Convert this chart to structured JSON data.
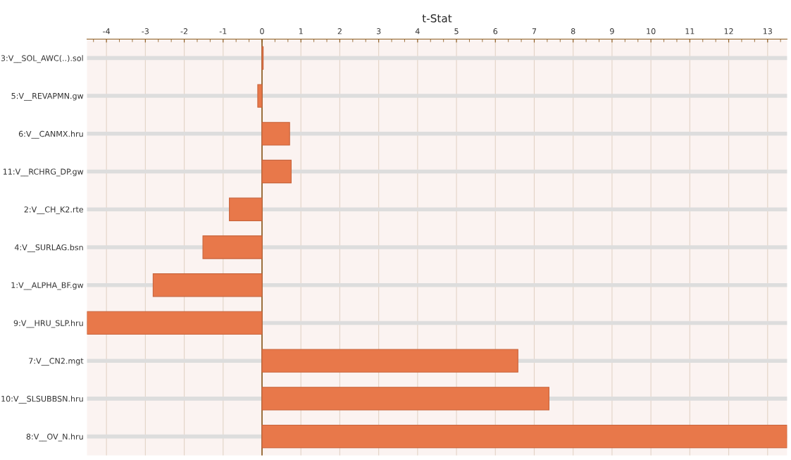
{
  "chart_data": {
    "type": "bar",
    "orientation": "horizontal",
    "xlabel": "t-Stat",
    "categories": [
      "3:V__SOL_AWC(..).sol",
      "5:V__REVAPMN.gw",
      "6:V__CANMX.hru",
      "11:V__RCHRG_DP.gw",
      "2:V__CH_K2.rte",
      "4:V__SURLAG.bsn",
      "1:V__ALPHA_BF.gw",
      "9:V__HRU_SLP.hru",
      "7:V__CN2.mgt",
      "10:V__SLSUBBSN.hru",
      "8:V__OV_N.hru"
    ],
    "values": [
      0.03,
      -0.11,
      0.71,
      0.75,
      -0.84,
      -1.52,
      -2.8,
      -4.5,
      6.58,
      7.38,
      13.5
    ],
    "color": "#e8784a",
    "xlim": [
      -4.5,
      13.5
    ],
    "xticks": [
      -4,
      -3,
      -2,
      -1,
      0,
      1,
      2,
      3,
      4,
      5,
      6,
      7,
      8,
      9,
      10,
      11,
      12,
      13
    ],
    "ref_lines": [
      {
        "axis": "x",
        "value": 0,
        "color": "#8b5a1e"
      }
    ],
    "grid": true,
    "legend": false
  }
}
